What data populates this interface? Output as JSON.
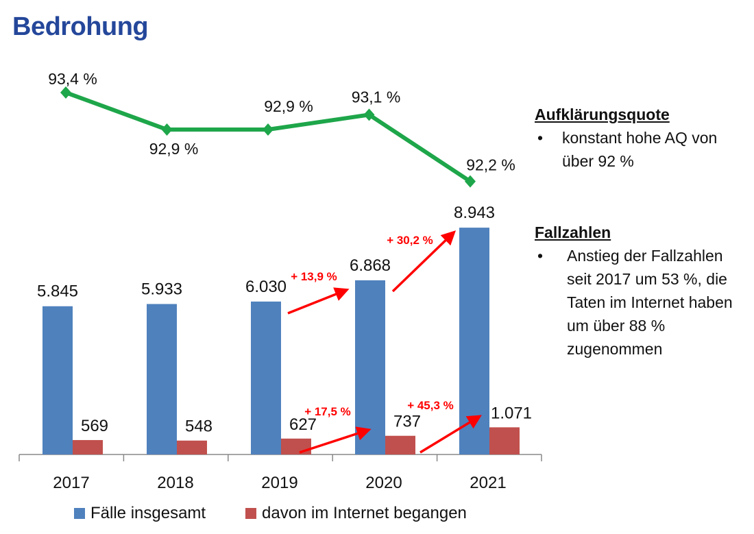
{
  "title": "Bedrohung",
  "sidebar": {
    "sections": [
      {
        "heading": "Aufklärungsquote",
        "bullets": [
          "konstant hohe AQ von über 92 %"
        ]
      },
      {
        "heading": "Fallzahlen",
        "bullets": [
          "Anstieg der Fallzahlen seit 2017 um 53 %, die Taten im Internet haben um über 88 % zugenommen"
        ]
      }
    ]
  },
  "colors": {
    "title": "#24479a",
    "bar_total": "#4f81bd",
    "bar_internet": "#c0504d",
    "line": "#1ea64a",
    "arrow": "#ff0000"
  },
  "chart_data": [
    {
      "type": "line",
      "series_label": "Aufklärungsquote",
      "categories": [
        "2017",
        "2018",
        "2019",
        "2020",
        "2021"
      ],
      "values": [
        93.4,
        92.9,
        92.9,
        93.1,
        92.2
      ],
      "data_labels": [
        "93,4 %",
        "92,9 %",
        "92,9 %",
        "93,1 %",
        "92,2 %"
      ],
      "marker": "diamond"
    },
    {
      "type": "bar",
      "categories": [
        "2017",
        "2018",
        "2019",
        "2020",
        "2021"
      ],
      "series": [
        {
          "name": "Fälle insgesamt",
          "values": [
            5845,
            5933,
            6030,
            6868,
            8943
          ],
          "data_labels": [
            "5.845",
            "5.933",
            "6.030",
            "6.868",
            "8.943"
          ]
        },
        {
          "name": "davon im Internet begangen",
          "values": [
            569,
            548,
            627,
            737,
            1071
          ],
          "data_labels": [
            "569",
            "548",
            "627",
            "737",
            "1.071"
          ]
        }
      ],
      "annotations": [
        {
          "text": "+ 13,9 %",
          "from": "2019",
          "to": "2020",
          "series": "Fälle insgesamt"
        },
        {
          "text": "+ 30,2 %",
          "from": "2020",
          "to": "2021",
          "series": "Fälle insgesamt"
        },
        {
          "text": "+ 17,5 %",
          "from": "2019",
          "to": "2020",
          "series": "davon im Internet begangen"
        },
        {
          "text": "+ 45,3 %",
          "from": "2020",
          "to": "2021",
          "series": "davon im Internet begangen"
        }
      ],
      "legend": "bottom",
      "grid": false
    }
  ]
}
